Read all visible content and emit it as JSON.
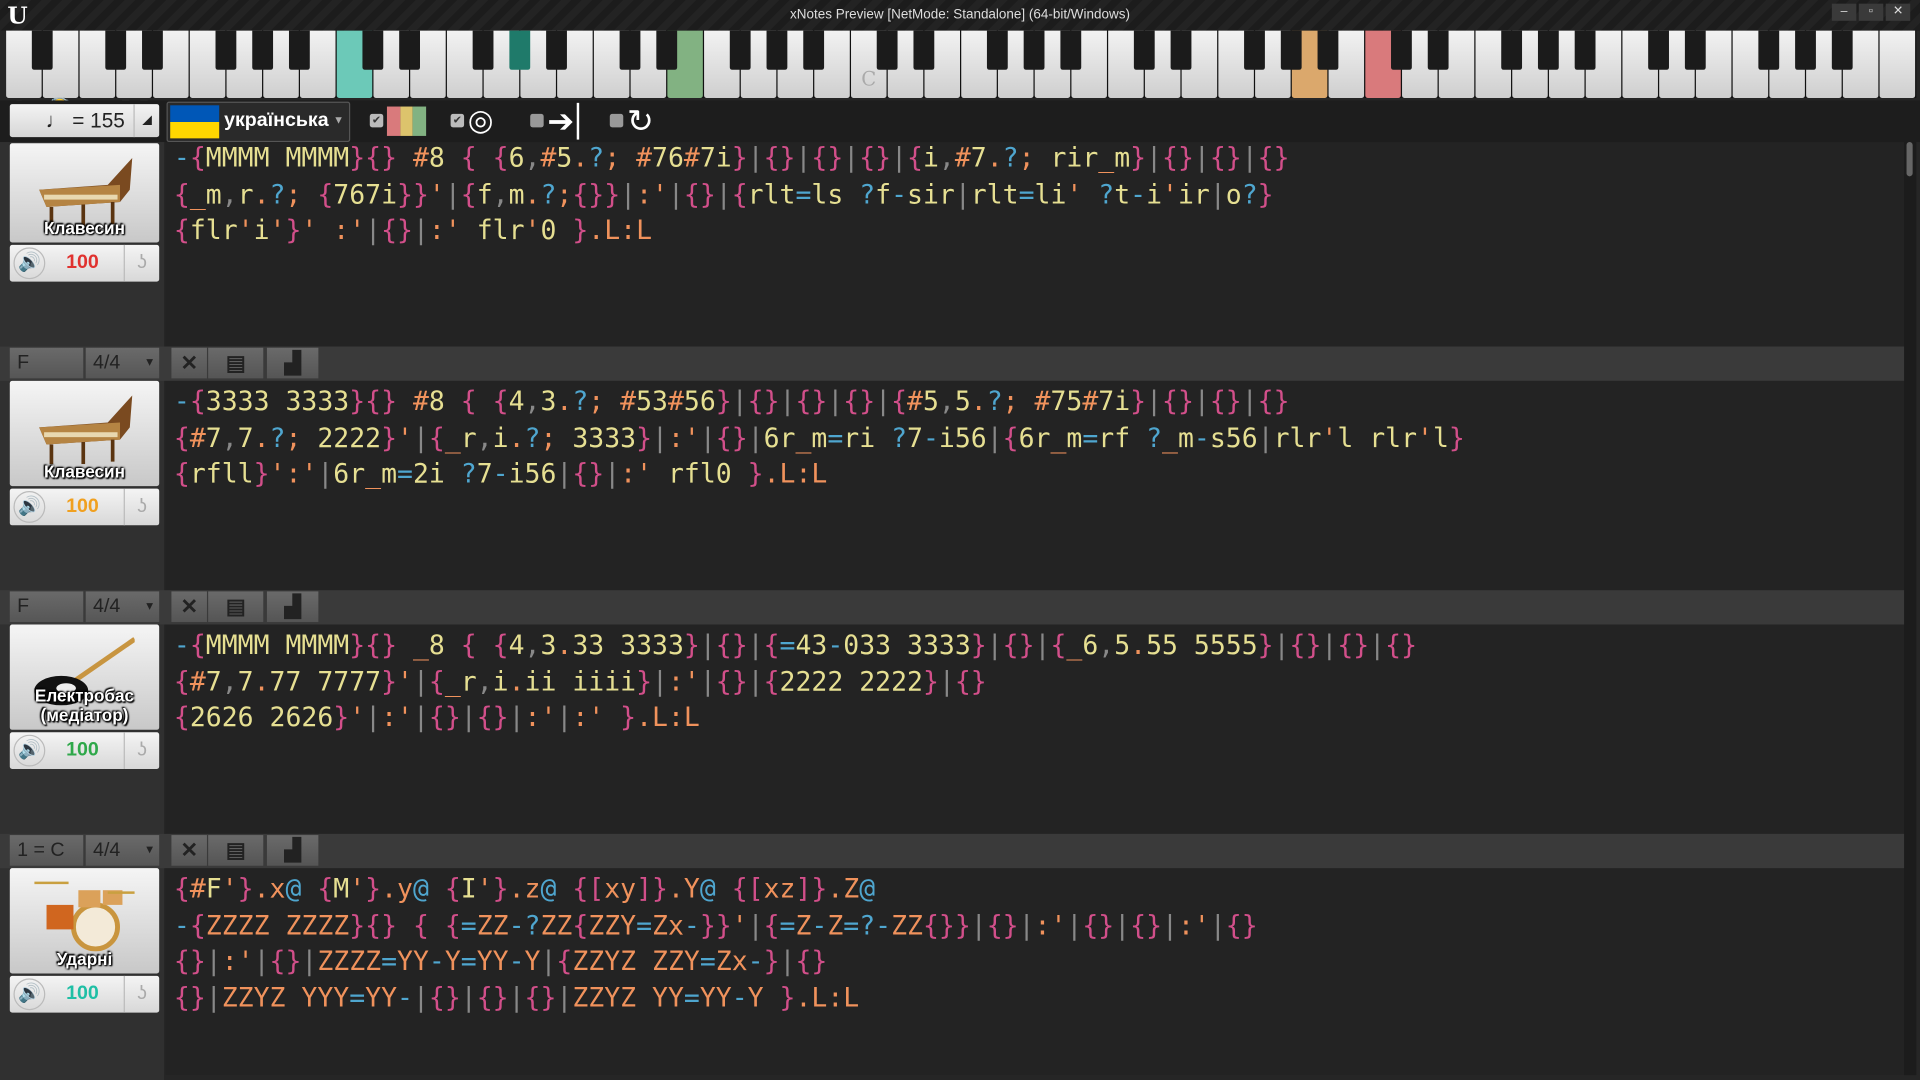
{
  "window": {
    "title": "xNotes Preview [NetMode: Standalone]  (64-bit/Windows)",
    "logo": "U"
  },
  "piano": {
    "white_key_count": 52,
    "first_key": "A",
    "highlighted_white": [
      {
        "key": 9,
        "color": "#6cc9b8"
      },
      {
        "key": 18,
        "color": "#82b282"
      },
      {
        "key": 35,
        "color": "#dba86c"
      },
      {
        "key": 37,
        "color": "#d97a7c"
      }
    ],
    "highlighted_black": [
      {
        "after_key": 13,
        "color": "#1f7a6a"
      }
    ],
    "c_label": {
      "key": 23,
      "text": "C"
    },
    "buttons": [
      {
        "icon": "fullscreen-icon",
        "glyph": "⛶"
      },
      {
        "icon": "ear-muted-icon",
        "glyph": "🦻"
      },
      {
        "icon": "gear-icon",
        "glyph": "⚙"
      },
      {
        "icon": "pause-icon",
        "glyph": "❚❚"
      }
    ]
  },
  "toolbar": {
    "tempo": "♩ = 155",
    "language": "українська",
    "view_checkbox": true,
    "listen_checkbox": true,
    "follow_checkbox": false,
    "loop_checkbox": false,
    "bar_colors": [
      "#d97a7c",
      "#dcc36c",
      "#82b282"
    ]
  },
  "tracks": [
    {
      "instrument": "Клавесин",
      "art": "harpsichord",
      "volume": "100",
      "volume_color": "#e0322f",
      "lines": [
        "-{MMMM MMMM}{} #8 { {6,#5.?; #76#7i}|{}|{}|{}|{i,#7.?; rir_m}|{}|{}|{}",
        "{_m,r.?; {767i}}'|{f,m.?;{}}|:'|{}|{rlt=ls ?f-sir|rlt=li' ?t-i'ir|o?}",
        "{flr'i'}' :'|{}|:' flr'0 }.L:L"
      ]
    },
    {
      "key": "F",
      "time": "4/4",
      "instrument": "Клавесин",
      "art": "harpsichord",
      "volume": "100",
      "volume_color": "#f0a020",
      "lines": [
        "-{3333 3333}{} #8 { {4,3.?; #53#56}|{}|{}|{}|{#5,5.?; #75#7i}|{}|{}|{}",
        "{#7,7.?; 2222}'|{_r,i.?; 3333}|:'|{}|6r_m=ri ?7-i56|{6r_m=rf ?_m-s56|rlr'l rlr'l}",
        "{rfll}':'|6r_m=2i ?7-i56|{}|:' rfl0 }.L:L"
      ]
    },
    {
      "key": "F",
      "time": "4/4",
      "instrument": "Електробас (медіатор)",
      "art": "bass",
      "volume": "100",
      "volume_color": "#2fa84a",
      "lines": [
        "-{MMMM MMMM}{} _8 { {4,3.33 3333}|{}|{=43-033 3333}|{}|{_6,5.55 5555}|{}|{}|{}",
        "{#7,7.77 7777}'|{_r,i.ii iiii}|:'|{}|{2222 2222}|{}",
        "{2626 2626}'|:'|{}|{}|:'|:' }.L:L"
      ]
    },
    {
      "key": "1 = C",
      "time": "4/4",
      "instrument": "Ударні",
      "art": "drums",
      "volume": "100",
      "volume_color": "#1fbfa5",
      "lines": [
        "{#F'}.x@ {M'}.y@ {I'}.z@ {[xy]}.Y@ {[xz]}.Z@",
        "-{ZZZZ ZZZZ}{} { {=ZZ-?ZZ{ZZY=Zx-}}'|{=Z-Z=?-ZZ{}}|{}|:'|{}|{}|:'|{}",
        "{}|:'|{}|ZZZZ=YY-Y=YY-Y|{ZZYZ ZZY=Zx-}|{}",
        "{}|ZZYZ YYY=YY-|{}|{}|{}|ZZYZ YY=YY-Y }.L:L"
      ]
    }
  ],
  "header_buttons": [
    {
      "icon": "close-icon",
      "glyph": "✕"
    },
    {
      "icon": "clipboard-icon",
      "glyph": "▤"
    },
    {
      "icon": "bars-icon",
      "glyph": "▟"
    }
  ]
}
